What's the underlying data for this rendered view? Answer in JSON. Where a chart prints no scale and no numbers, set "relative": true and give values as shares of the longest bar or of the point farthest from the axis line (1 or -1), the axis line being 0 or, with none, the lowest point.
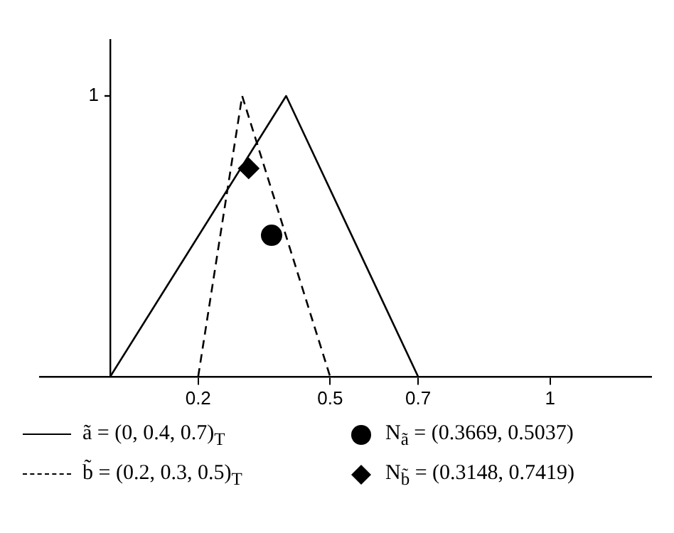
{
  "chart_data": {
    "type": "line",
    "relative": true,
    "series": [
      {
        "name": "ã = (0, 0.4, 0.7)$_{T}$",
        "color": "#000000",
        "line_style": "solid",
        "x": [
          0,
          0.4,
          0.7
        ],
        "values": [
          0,
          1,
          0
        ]
      },
      {
        "name": "N$_{ã}$ = (0.3669, 0.5037)",
        "type": "scatter",
        "marker": "circle",
        "color": "#000000",
        "x": [
          0.3669
        ],
        "values": [
          0.5037
        ]
      },
      {
        "name": "b̃ = (0.2, 0.3, 0.5)$_{T}$",
        "color": "#000000",
        "line_style": "dashed",
        "x": [
          0.2,
          0.3,
          0.5
        ],
        "values": [
          0,
          1,
          0
        ]
      },
      {
        "name": "N$_{b̃}$ = (0.3148, 0.7419)",
        "type": "scatter",
        "marker": "diamond",
        "color": "#000000",
        "x": [
          0.3148
        ],
        "values": [
          0.7419
        ]
      }
    ],
    "xlim": [
      -0.16,
      1.23
    ],
    "xticks": [
      0.2,
      0.5,
      0.7,
      1
    ],
    "annotations": [
      "1"
    ],
    "grid": false,
    "legend": "bottom"
  }
}
